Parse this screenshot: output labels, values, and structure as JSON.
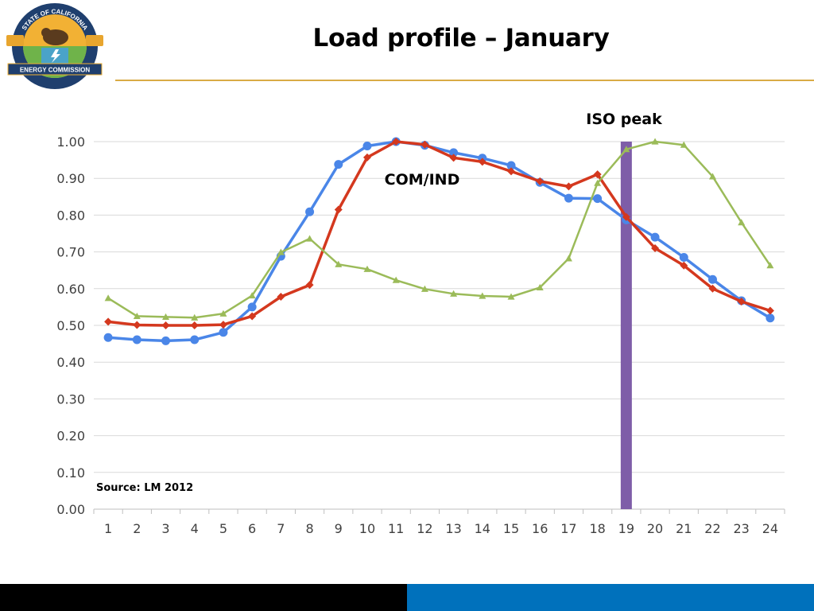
{
  "page": {
    "title": "Load profile – January"
  },
  "logo": {
    "ring_text_top": "STATE OF CALIFORNIA",
    "banner_text": "ENERGY COMMISSION"
  },
  "colors": {
    "title_rule": "#d9ab45",
    "series_blue": "#4a86e8",
    "series_red": "#d4381e",
    "series_green": "#9bbb59",
    "iso_bar": "#7e5da8",
    "footer_dark": "#000000",
    "footer_blue": "#0071bc"
  },
  "chart_data": {
    "type": "line",
    "title": "",
    "xlabel": "",
    "ylabel": "",
    "x": [
      1,
      2,
      3,
      4,
      5,
      6,
      7,
      8,
      9,
      10,
      11,
      12,
      13,
      14,
      15,
      16,
      17,
      18,
      19,
      20,
      21,
      22,
      23,
      24
    ],
    "ylim": [
      0,
      1.0
    ],
    "yticks": [
      "0.00",
      "0.10",
      "0.20",
      "0.30",
      "0.40",
      "0.50",
      "0.60",
      "0.70",
      "0.80",
      "0.90",
      "1.00"
    ],
    "grid": true,
    "series": [
      {
        "marker": "circle",
        "color": "#4a86e8",
        "values": [
          0.467,
          0.461,
          0.458,
          0.461,
          0.481,
          0.55,
          0.688,
          0.809,
          0.938,
          0.988,
          1.0,
          0.99,
          0.97,
          0.955,
          0.935,
          0.889,
          0.846,
          0.845,
          0.787,
          0.74,
          0.685,
          0.625,
          0.567,
          0.52
        ]
      },
      {
        "marker": "diamond",
        "color": "#d4381e",
        "values": [
          0.51,
          0.501,
          0.5,
          0.5,
          0.502,
          0.525,
          0.578,
          0.61,
          0.815,
          0.957,
          1.0,
          0.992,
          0.956,
          0.945,
          0.919,
          0.892,
          0.878,
          0.911,
          0.795,
          0.71,
          0.663,
          0.6,
          0.565,
          0.54
        ]
      },
      {
        "marker": "triangle",
        "color": "#9bbb59",
        "values": [
          0.574,
          0.525,
          0.523,
          0.521,
          0.532,
          0.581,
          0.699,
          0.736,
          0.666,
          0.653,
          0.623,
          0.599,
          0.586,
          0.58,
          0.578,
          0.603,
          0.682,
          0.887,
          0.979,
          1.0,
          0.991,
          0.905,
          0.78,
          0.663
        ]
      }
    ],
    "annotations": {
      "iso_peak_label": "ISO peak",
      "iso_peak_x": 19,
      "com_ind_label": "COM/IND",
      "source_label": "Source: LM 2012"
    }
  }
}
